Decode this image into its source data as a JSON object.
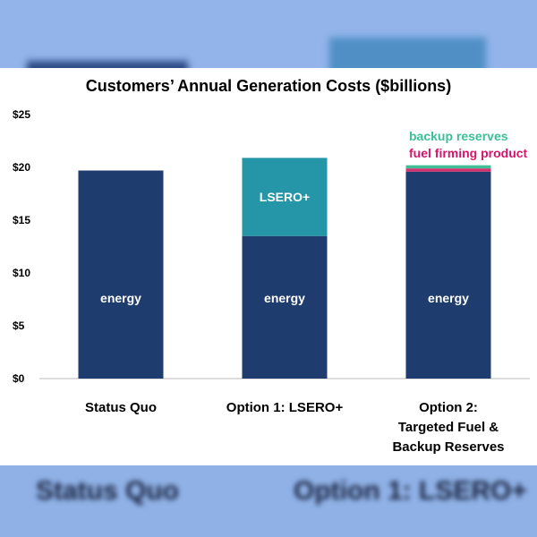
{
  "background_labels": [
    "Status Quo",
    "Option 1: LSERO+"
  ],
  "chart_data": {
    "type": "bar",
    "stacked": true,
    "title": "Customers’ Annual Generation Costs ($billions)",
    "xlabel": "",
    "ylabel": "",
    "ylim": [
      0,
      25
    ],
    "yticks": [
      0,
      5,
      10,
      15,
      20,
      25
    ],
    "ytick_labels": [
      "$0",
      "$5",
      "$10",
      "$15",
      "$20",
      "$25"
    ],
    "grid": false,
    "categories": [
      [
        "Status Quo"
      ],
      [
        "Option 1: LSERO+"
      ],
      [
        "Option 2:",
        "Targeted Fuel &",
        "Backup Reserves"
      ]
    ],
    "series": [
      {
        "name": "energy",
        "color": "#1e3c6e",
        "values": [
          19.7,
          13.5,
          19.6
        ],
        "label_in_bar": true
      },
      {
        "name": "LSERO+",
        "color": "#2596a8",
        "values": [
          0,
          7.4,
          0
        ],
        "label_in_bar": true
      },
      {
        "name": "fuel firming product",
        "color": "#d6306e",
        "values": [
          0,
          0,
          0.3
        ],
        "label_color": "#d4156c"
      },
      {
        "name": "backup reserves",
        "color": "#3fbf98",
        "values": [
          0,
          0,
          0.3
        ],
        "label_color": "#3cbf96"
      }
    ]
  }
}
